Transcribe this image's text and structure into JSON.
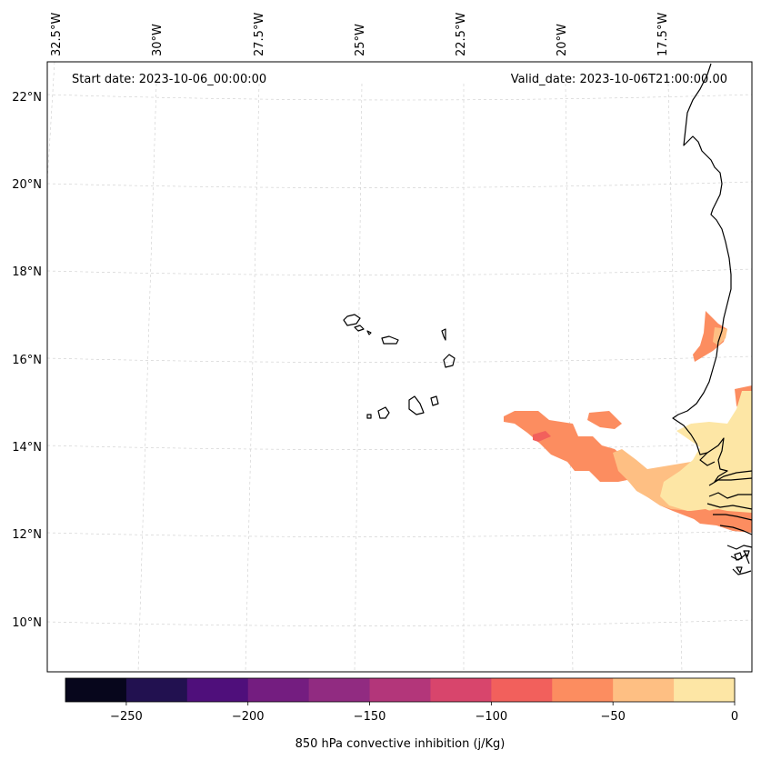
{
  "header": {
    "start_date": "Start date: 2023-10-06_00:00:00",
    "valid_date": "Valid_date: 2023-10-06T21:00:00.00"
  },
  "longitude_labels": [
    "32.5°W",
    "30°W",
    "27.5°W",
    "25°W",
    "22.5°W",
    "20°W",
    "17.5°W"
  ],
  "latitude_labels": [
    "22°N",
    "20°N",
    "18°N",
    "16°N",
    "14°N",
    "12°N",
    "10°N"
  ],
  "colorbar": {
    "label": "850 hPa convective inhibition (j/Kg)",
    "tick_labels": [
      "−250",
      "−200",
      "−150",
      "−100",
      "−50",
      "0"
    ],
    "bins": [
      -275,
      -250,
      -225,
      -200,
      -175,
      -150,
      -125,
      -100,
      -75,
      -50,
      -25,
      0
    ],
    "colors": [
      "#07061c",
      "#221150",
      "#4f0f7b",
      "#741d80",
      "#912b81",
      "#b3367a",
      "#d8456c",
      "#f2605c",
      "#fc8d60",
      "#febf83",
      "#fde6a5"
    ]
  },
  "colors": {
    "coastline": "#000000",
    "gridline": "#cccccc"
  }
}
